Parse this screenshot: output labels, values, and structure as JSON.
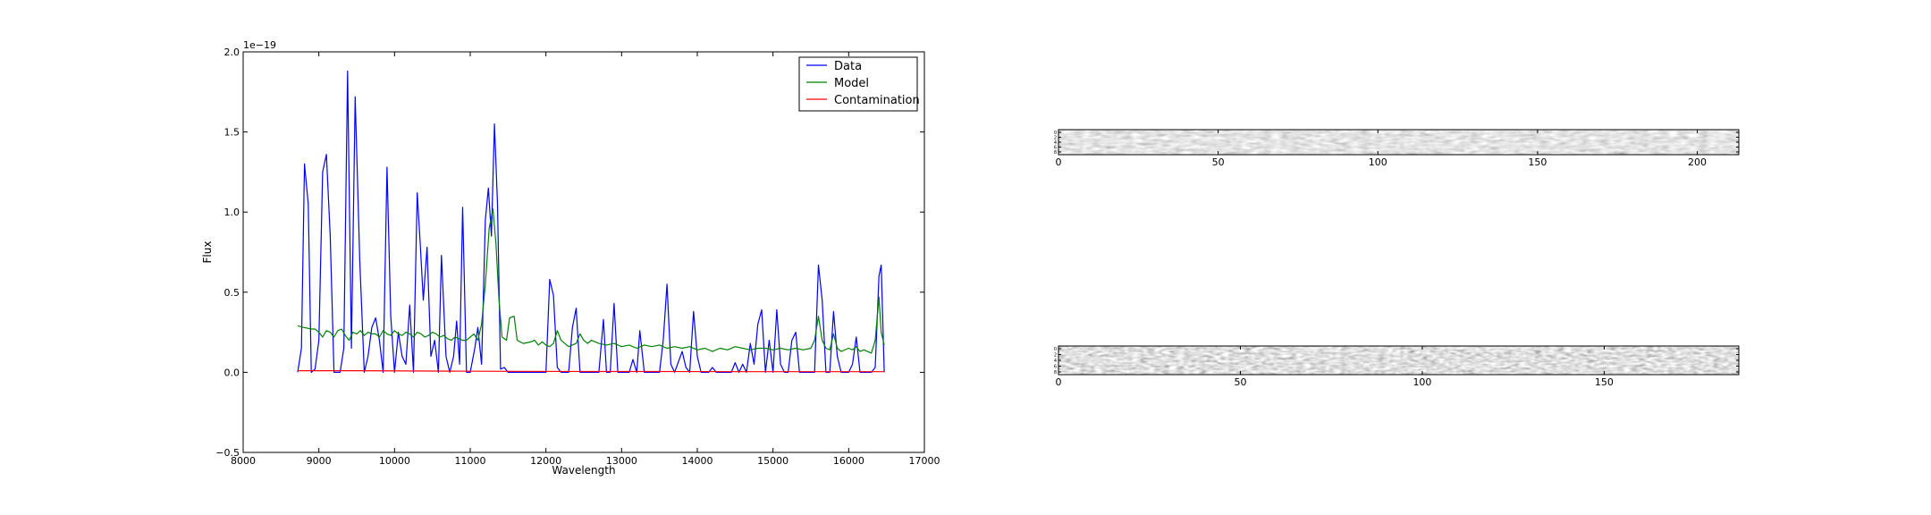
{
  "chart_data": [
    {
      "type": "line",
      "title": "",
      "xlabel": "Wavelength",
      "ylabel": "Flux",
      "xlim": [
        8000,
        17000
      ],
      "ylim": [
        -0.5,
        2.0
      ],
      "y_offset_label": "1e−19",
      "x_ticks": [
        8000,
        9000,
        10000,
        11000,
        12000,
        13000,
        14000,
        15000,
        16000,
        17000
      ],
      "y_ticks": [
        -0.5,
        0.0,
        0.5,
        1.0,
        1.5,
        2.0
      ],
      "x_tick_labels": [
        "8000",
        "9000",
        "10000",
        "11000",
        "12000",
        "13000",
        "14000",
        "15000",
        "16000",
        "17000"
      ],
      "y_tick_labels": [
        "−0.5",
        "0.0",
        "0.5",
        "1.0",
        "1.5",
        "2.0"
      ],
      "legend_position": "top-right",
      "grid": false,
      "series": [
        {
          "name": "Data",
          "color": "#0000ff",
          "points": [
            [
              8720,
              0.0
            ],
            [
              8770,
              0.15
            ],
            [
              8810,
              1.3
            ],
            [
              8860,
              1.05
            ],
            [
              8900,
              0.0
            ],
            [
              8950,
              0.02
            ],
            [
              9000,
              0.2
            ],
            [
              9050,
              1.25
            ],
            [
              9100,
              1.36
            ],
            [
              9150,
              0.85
            ],
            [
              9200,
              0.0
            ],
            [
              9280,
              0.0
            ],
            [
              9330,
              0.15
            ],
            [
              9380,
              1.88
            ],
            [
              9430,
              0.15
            ],
            [
              9480,
              1.72
            ],
            [
              9540,
              0.7
            ],
            [
              9600,
              0.0
            ],
            [
              9650,
              0.1
            ],
            [
              9700,
              0.28
            ],
            [
              9750,
              0.34
            ],
            [
              9800,
              0.2
            ],
            [
              9850,
              0.0
            ],
            [
              9900,
              1.28
            ],
            [
              9950,
              0.35
            ],
            [
              10000,
              0.0
            ],
            [
              10050,
              0.25
            ],
            [
              10100,
              0.1
            ],
            [
              10150,
              0.05
            ],
            [
              10200,
              0.42
            ],
            [
              10250,
              0.0
            ],
            [
              10300,
              1.12
            ],
            [
              10340,
              0.8
            ],
            [
              10380,
              0.45
            ],
            [
              10430,
              0.78
            ],
            [
              10480,
              0.1
            ],
            [
              10530,
              0.2
            ],
            [
              10580,
              0.0
            ],
            [
              10620,
              0.73
            ],
            [
              10680,
              0.1
            ],
            [
              10730,
              0.0
            ],
            [
              10780,
              0.1
            ],
            [
              10820,
              0.32
            ],
            [
              10860,
              0.05
            ],
            [
              10900,
              1.03
            ],
            [
              10950,
              0.0
            ],
            [
              11000,
              0.0
            ],
            [
              11060,
              0.15
            ],
            [
              11100,
              0.28
            ],
            [
              11150,
              0.05
            ],
            [
              11200,
              0.95
            ],
            [
              11240,
              1.15
            ],
            [
              11280,
              0.85
            ],
            [
              11320,
              1.55
            ],
            [
              11360,
              1.05
            ],
            [
              11400,
              0.02
            ],
            [
              11450,
              0.03
            ],
            [
              11500,
              0.0
            ],
            [
              12000,
              0.0
            ],
            [
              12050,
              0.58
            ],
            [
              12100,
              0.48
            ],
            [
              12150,
              0.03
            ],
            [
              12200,
              0.0
            ],
            [
              12300,
              0.0
            ],
            [
              12350,
              0.28
            ],
            [
              12400,
              0.4
            ],
            [
              12450,
              0.0
            ],
            [
              12700,
              0.0
            ],
            [
              12760,
              0.33
            ],
            [
              12800,
              0.0
            ],
            [
              12850,
              0.0
            ],
            [
              12900,
              0.43
            ],
            [
              12950,
              0.0
            ],
            [
              13100,
              0.0
            ],
            [
              13150,
              0.08
            ],
            [
              13200,
              0.0
            ],
            [
              13240,
              0.26
            ],
            [
              13300,
              0.0
            ],
            [
              13500,
              0.0
            ],
            [
              13550,
              0.2
            ],
            [
              13600,
              0.55
            ],
            [
              13650,
              0.05
            ],
            [
              13700,
              0.0
            ],
            [
              13800,
              0.13
            ],
            [
              13850,
              0.03
            ],
            [
              13900,
              0.0
            ],
            [
              13950,
              0.38
            ],
            [
              14000,
              0.1
            ],
            [
              14050,
              0.0
            ],
            [
              14150,
              0.0
            ],
            [
              14200,
              0.03
            ],
            [
              14250,
              0.0
            ],
            [
              14450,
              0.0
            ],
            [
              14500,
              0.06
            ],
            [
              14550,
              0.0
            ],
            [
              14600,
              0.05
            ],
            [
              14650,
              0.0
            ],
            [
              14700,
              0.18
            ],
            [
              14750,
              0.05
            ],
            [
              14800,
              0.3
            ],
            [
              14850,
              0.39
            ],
            [
              14900,
              0.0
            ],
            [
              14950,
              0.2
            ],
            [
              15000,
              0.0
            ],
            [
              15050,
              0.39
            ],
            [
              15100,
              0.05
            ],
            [
              15150,
              0.0
            ],
            [
              15200,
              0.0
            ],
            [
              15250,
              0.2
            ],
            [
              15300,
              0.25
            ],
            [
              15350,
              0.0
            ],
            [
              15550,
              0.0
            ],
            [
              15600,
              0.67
            ],
            [
              15650,
              0.45
            ],
            [
              15700,
              0.0
            ],
            [
              15750,
              0.0
            ],
            [
              15800,
              0.38
            ],
            [
              15850,
              0.1
            ],
            [
              15900,
              0.0
            ],
            [
              16000,
              0.0
            ],
            [
              16050,
              0.05
            ],
            [
              16100,
              0.22
            ],
            [
              16150,
              0.0
            ],
            [
              16300,
              0.0
            ],
            [
              16350,
              0.03
            ],
            [
              16400,
              0.6
            ],
            [
              16430,
              0.67
            ],
            [
              16470,
              0.0
            ]
          ]
        },
        {
          "name": "Model",
          "color": "#008000",
          "points": [
            [
              8720,
              0.29
            ],
            [
              8800,
              0.28
            ],
            [
              8900,
              0.27
            ],
            [
              8950,
              0.27
            ],
            [
              9000,
              0.25
            ],
            [
              9050,
              0.22
            ],
            [
              9100,
              0.26
            ],
            [
              9150,
              0.25
            ],
            [
              9200,
              0.22
            ],
            [
              9250,
              0.26
            ],
            [
              9300,
              0.27
            ],
            [
              9350,
              0.23
            ],
            [
              9400,
              0.2
            ],
            [
              9450,
              0.25
            ],
            [
              9500,
              0.24
            ],
            [
              9550,
              0.26
            ],
            [
              9600,
              0.23
            ],
            [
              9650,
              0.25
            ],
            [
              9700,
              0.24
            ],
            [
              9750,
              0.24
            ],
            [
              9800,
              0.22
            ],
            [
              9850,
              0.26
            ],
            [
              9900,
              0.24
            ],
            [
              9950,
              0.23
            ],
            [
              10000,
              0.26
            ],
            [
              10050,
              0.24
            ],
            [
              10100,
              0.23
            ],
            [
              10150,
              0.25
            ],
            [
              10200,
              0.24
            ],
            [
              10250,
              0.22
            ],
            [
              10300,
              0.25
            ],
            [
              10350,
              0.24
            ],
            [
              10400,
              0.22
            ],
            [
              10450,
              0.23
            ],
            [
              10500,
              0.25
            ],
            [
              10550,
              0.24
            ],
            [
              10600,
              0.22
            ],
            [
              10650,
              0.23
            ],
            [
              10700,
              0.21
            ],
            [
              10750,
              0.2
            ],
            [
              10800,
              0.22
            ],
            [
              10850,
              0.21
            ],
            [
              10900,
              0.2
            ],
            [
              10950,
              0.2
            ],
            [
              11000,
              0.22
            ],
            [
              11050,
              0.24
            ],
            [
              11100,
              0.2
            ],
            [
              11150,
              0.3
            ],
            [
              11200,
              0.55
            ],
            [
              11250,
              0.9
            ],
            [
              11300,
              1.02
            ],
            [
              11340,
              0.8
            ],
            [
              11380,
              0.45
            ],
            [
              11420,
              0.22
            ],
            [
              11480,
              0.2
            ],
            [
              11520,
              0.34
            ],
            [
              11580,
              0.35
            ],
            [
              11620,
              0.2
            ],
            [
              11700,
              0.18
            ],
            [
              11800,
              0.19
            ],
            [
              11850,
              0.2
            ],
            [
              11900,
              0.17
            ],
            [
              11950,
              0.19
            ],
            [
              12000,
              0.17
            ],
            [
              12050,
              0.16
            ],
            [
              12100,
              0.18
            ],
            [
              12150,
              0.26
            ],
            [
              12200,
              0.2
            ],
            [
              12250,
              0.18
            ],
            [
              12300,
              0.16
            ],
            [
              12350,
              0.17
            ],
            [
              12400,
              0.18
            ],
            [
              12450,
              0.24
            ],
            [
              12500,
              0.2
            ],
            [
              12550,
              0.18
            ],
            [
              12600,
              0.2
            ],
            [
              12700,
              0.18
            ],
            [
              12800,
              0.17
            ],
            [
              12900,
              0.18
            ],
            [
              13000,
              0.16
            ],
            [
              13100,
              0.17
            ],
            [
              13200,
              0.15
            ],
            [
              13300,
              0.17
            ],
            [
              13400,
              0.16
            ],
            [
              13500,
              0.17
            ],
            [
              13600,
              0.15
            ],
            [
              13700,
              0.16
            ],
            [
              13800,
              0.15
            ],
            [
              13900,
              0.16
            ],
            [
              14000,
              0.14
            ],
            [
              14100,
              0.15
            ],
            [
              14200,
              0.13
            ],
            [
              14300,
              0.15
            ],
            [
              14400,
              0.14
            ],
            [
              14500,
              0.16
            ],
            [
              14600,
              0.15
            ],
            [
              14700,
              0.14
            ],
            [
              14800,
              0.15
            ],
            [
              14900,
              0.15
            ],
            [
              15000,
              0.14
            ],
            [
              15100,
              0.15
            ],
            [
              15200,
              0.14
            ],
            [
              15300,
              0.15
            ],
            [
              15400,
              0.14
            ],
            [
              15500,
              0.15
            ],
            [
              15550,
              0.2
            ],
            [
              15600,
              0.35
            ],
            [
              15650,
              0.2
            ],
            [
              15700,
              0.15
            ],
            [
              15750,
              0.14
            ],
            [
              15800,
              0.24
            ],
            [
              15850,
              0.15
            ],
            [
              15900,
              0.13
            ],
            [
              16000,
              0.15
            ],
            [
              16050,
              0.14
            ],
            [
              16100,
              0.16
            ],
            [
              16150,
              0.13
            ],
            [
              16200,
              0.14
            ],
            [
              16300,
              0.12
            ],
            [
              16350,
              0.2
            ],
            [
              16400,
              0.47
            ],
            [
              16430,
              0.25
            ],
            [
              16470,
              0.17
            ]
          ]
        },
        {
          "name": "Contamination",
          "color": "#ff0000",
          "points": [
            [
              8720,
              0.01
            ],
            [
              9500,
              0.01
            ],
            [
              10500,
              0.008
            ],
            [
              11500,
              0.006
            ],
            [
              12500,
              0.005
            ],
            [
              13500,
              0.005
            ],
            [
              14500,
              0.004
            ],
            [
              15500,
              0.004
            ],
            [
              16470,
              0.004
            ]
          ]
        }
      ]
    },
    {
      "type": "heatmap",
      "colormap": "gray",
      "xlim": [
        0,
        213
      ],
      "x_ticks": [
        0,
        50,
        100,
        150,
        200
      ],
      "x_tick_labels": [
        "0",
        "50",
        "100",
        "150",
        "200"
      ],
      "y_tick_labels": [
        "0",
        "2",
        "4",
        "6",
        "8"
      ]
    },
    {
      "type": "heatmap",
      "colormap": "gray",
      "xlim": [
        0,
        187
      ],
      "x_ticks": [
        0,
        50,
        100,
        150
      ],
      "x_tick_labels": [
        "0",
        "50",
        "100",
        "150"
      ],
      "y_tick_labels": [
        "0",
        "2",
        "4",
        "6",
        "8"
      ]
    }
  ]
}
